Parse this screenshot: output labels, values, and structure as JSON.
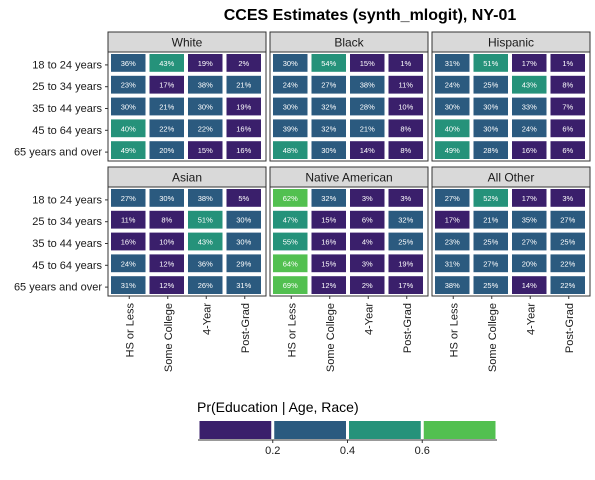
{
  "chart_data": {
    "type": "heatmap",
    "title": "CCES Estimates (synth_mlogit), NY-01",
    "panels": [
      "White",
      "Black",
      "Hispanic",
      "Asian",
      "Native American",
      "All Other"
    ],
    "rows": [
      "18 to 24 years",
      "25 to 34 years",
      "35 to 44 years",
      "45 to 64 years",
      "65 years and over"
    ],
    "columns": [
      "HS or Less",
      "Some College",
      "4-Year",
      "Post-Grad"
    ],
    "values": {
      "White": [
        [
          36,
          43,
          19,
          2
        ],
        [
          23,
          17,
          38,
          21
        ],
        [
          30,
          21,
          30,
          19
        ],
        [
          40,
          22,
          22,
          16
        ],
        [
          49,
          20,
          15,
          16
        ]
      ],
      "Black": [
        [
          30,
          54,
          15,
          1
        ],
        [
          24,
          27,
          38,
          11
        ],
        [
          30,
          32,
          28,
          10
        ],
        [
          39,
          32,
          21,
          8
        ],
        [
          48,
          30,
          14,
          8
        ]
      ],
      "Hispanic": [
        [
          31,
          51,
          17,
          1
        ],
        [
          24,
          25,
          43,
          8
        ],
        [
          30,
          30,
          33,
          7
        ],
        [
          40,
          30,
          24,
          6
        ],
        [
          49,
          28,
          16,
          6
        ]
      ],
      "Asian": [
        [
          27,
          30,
          38,
          5
        ],
        [
          11,
          8,
          51,
          30
        ],
        [
          16,
          10,
          43,
          30
        ],
        [
          24,
          12,
          36,
          29
        ],
        [
          31,
          12,
          26,
          31
        ]
      ],
      "Native American": [
        [
          62,
          32,
          3,
          3
        ],
        [
          47,
          15,
          6,
          32
        ],
        [
          55,
          16,
          4,
          25
        ],
        [
          64,
          15,
          3,
          19
        ],
        [
          69,
          12,
          2,
          17
        ]
      ],
      "All Other": [
        [
          27,
          52,
          17,
          3
        ],
        [
          17,
          21,
          35,
          27
        ],
        [
          23,
          25,
          27,
          25
        ],
        [
          31,
          27,
          20,
          22
        ],
        [
          38,
          25,
          14,
          22
        ]
      ]
    },
    "legend": {
      "title": "Pr(Education | Age, Race)",
      "ticks": [
        "0.2",
        "0.4",
        "0.6"
      ],
      "tick_values": [
        0.2,
        0.4,
        0.6
      ],
      "bins": [
        {
          "from": 0.0,
          "to": 0.2,
          "color": "#3a1f6b"
        },
        {
          "from": 0.2,
          "to": 0.4,
          "color": "#2b5a7f"
        },
        {
          "from": 0.4,
          "to": 0.6,
          "color": "#25927a"
        },
        {
          "from": 0.6,
          "to": 0.8,
          "color": "#52c050"
        }
      ],
      "position": "bottom"
    }
  }
}
